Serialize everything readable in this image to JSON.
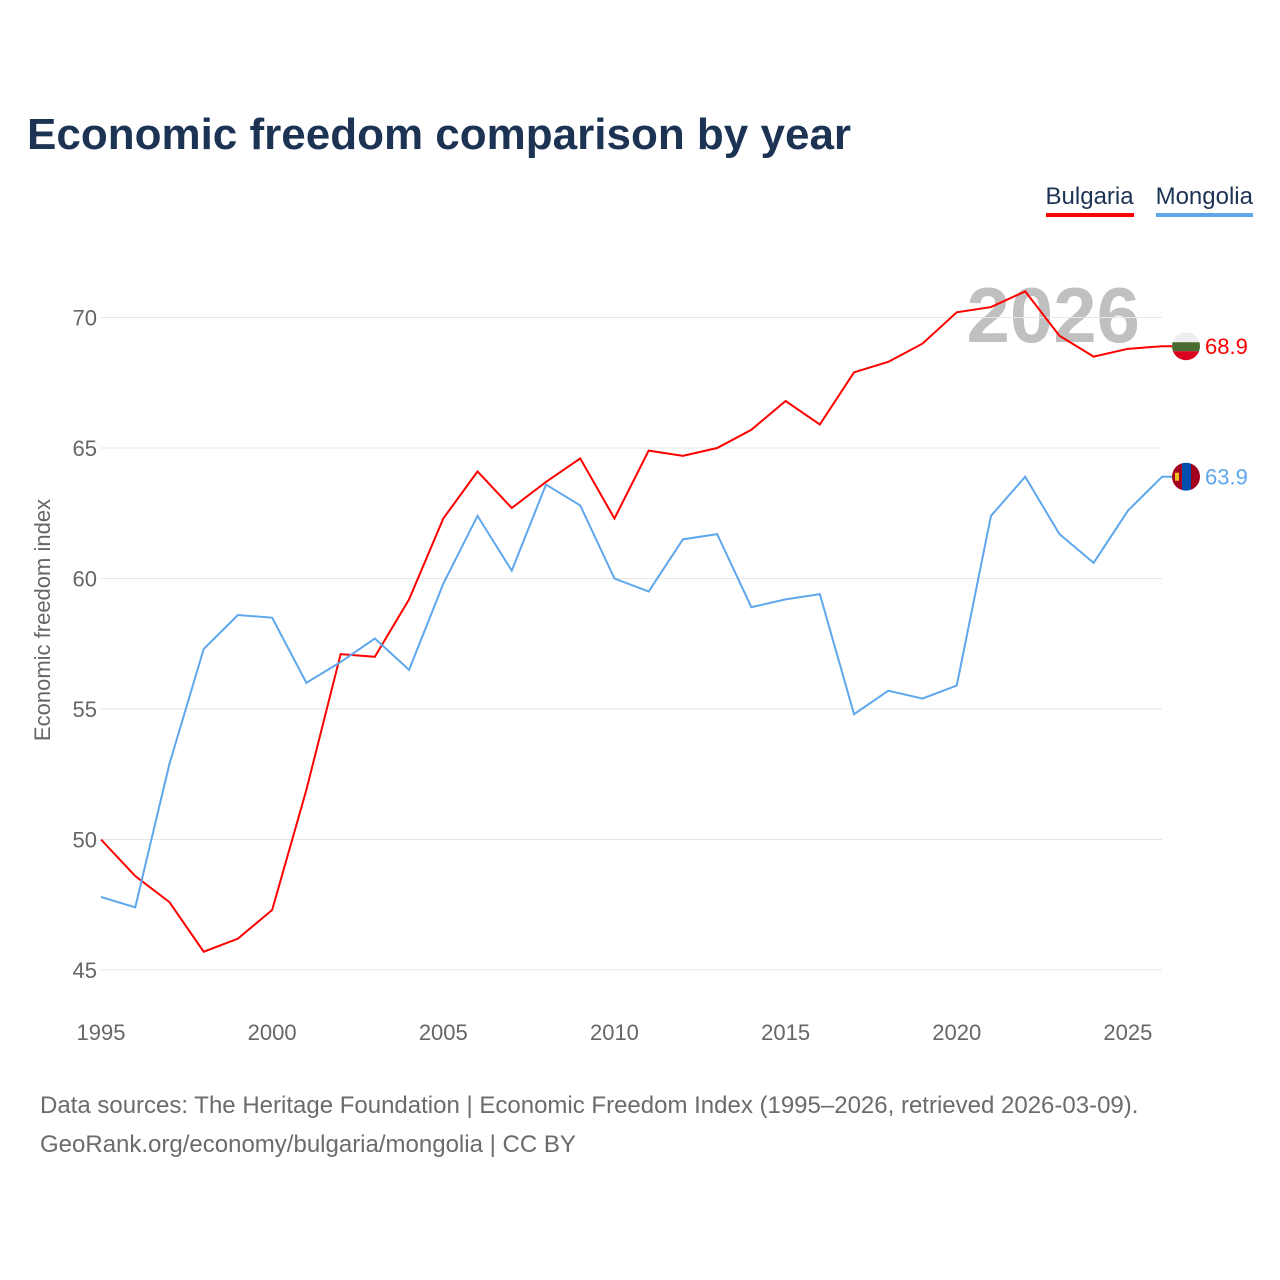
{
  "title": "Economic freedom comparison by year",
  "big_year": "2026",
  "footer": {
    "sources": "Data sources: The Heritage Foundation | Economic Freedom Index (1995–2026, retrieved 2026-03-09).",
    "credit": "GeoRank.org/economy/bulgaria/mongolia | CC BY"
  },
  "chart_data": {
    "type": "line",
    "title": "Economic freedom comparison by year",
    "xlabel": "",
    "ylabel": "Economic freedom index",
    "xlim": [
      1995,
      2026
    ],
    "ylim": [
      45,
      72
    ],
    "xticks": [
      1995,
      2000,
      2005,
      2010,
      2015,
      2020,
      2025
    ],
    "yticks": [
      45,
      50,
      55,
      60,
      65,
      70
    ],
    "grid": true,
    "legend_placement": "top-right",
    "x": [
      1995,
      1996,
      1997,
      1998,
      1999,
      2000,
      2001,
      2002,
      2003,
      2004,
      2005,
      2006,
      2007,
      2008,
      2009,
      2010,
      2011,
      2012,
      2013,
      2014,
      2015,
      2016,
      2017,
      2018,
      2019,
      2020,
      2021,
      2022,
      2023,
      2024,
      2025,
      2026
    ],
    "series": [
      {
        "name": "Bulgaria",
        "color": "#ff0000",
        "end_label": "68.9",
        "values": [
          50.0,
          48.6,
          47.6,
          45.7,
          46.2,
          47.3,
          51.9,
          57.1,
          57.0,
          59.2,
          62.3,
          64.1,
          62.7,
          63.7,
          64.6,
          62.3,
          64.9,
          64.7,
          65.0,
          65.7,
          66.8,
          65.9,
          67.9,
          68.3,
          69.0,
          70.2,
          70.4,
          71.0,
          69.3,
          68.5,
          68.8,
          68.9
        ]
      },
      {
        "name": "Mongolia",
        "color": "#5ea7ec",
        "end_label": "63.9",
        "values": [
          47.8,
          47.4,
          52.9,
          57.3,
          58.6,
          58.5,
          56.0,
          56.8,
          57.7,
          56.5,
          59.8,
          62.4,
          60.3,
          63.6,
          62.8,
          60.0,
          59.5,
          61.5,
          61.7,
          58.9,
          59.2,
          59.4,
          54.8,
          55.7,
          55.4,
          55.9,
          62.4,
          63.9,
          61.7,
          60.6,
          62.6,
          63.9
        ]
      }
    ]
  }
}
